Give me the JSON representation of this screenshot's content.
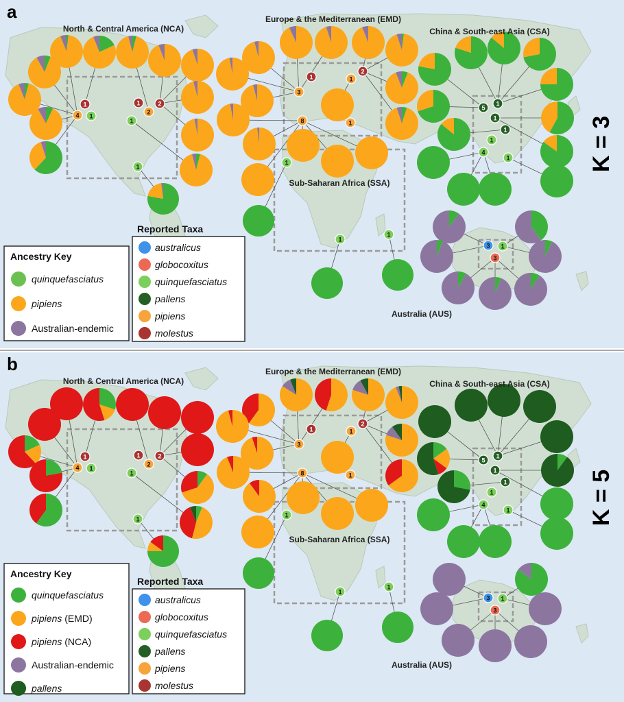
{
  "colors": {
    "ocean": "#dce8f3",
    "land": "#d1dfd2",
    "land_stroke": "#b8c9bb",
    "quinquefasciatus": "#3cb23c",
    "pipiens": "#fca61b",
    "pipiens_nca": "#e01818",
    "australian": "#8c76a0",
    "pallens": "#1f5c1f",
    "taxa_australicus": "#3f92ea",
    "taxa_globocoxitus": "#ec6a55",
    "taxa_quinquefasciatus": "#7ccf5c",
    "taxa_pallens": "#265f26",
    "taxa_pipiens": "#f7a43b",
    "taxa_molestus": "#a93532",
    "key_quinq_a": "#6cc052"
  },
  "panel_a": {
    "label": "a",
    "k_label": "K = 3",
    "regions": {
      "nca": "North & Central America (NCA)",
      "emd": "Europe & the Mediterranean (EMD)",
      "csa": "China & South-east Asia (CSA)",
      "ssa": "Sub-Saharan Africa (SSA)",
      "aus": "Australia (AUS)"
    },
    "ancestry_key": {
      "title": "Ancestry Key",
      "items": [
        {
          "label": "quinquefasciatus",
          "italic": true,
          "color": "#6cc052"
        },
        {
          "label": "pipiens",
          "italic": true,
          "color": "#fca61b"
        },
        {
          "label": "Australian-endemic",
          "italic": false,
          "color": "#8c76a0"
        }
      ]
    },
    "taxa_key": {
      "title": "Reported Taxa",
      "items": [
        {
          "label": "australicus",
          "color": "#3f92ea"
        },
        {
          "label": "globocoxitus",
          "color": "#ec6a55"
        },
        {
          "label": "quinquefasciatus",
          "color": "#7ccf5c"
        },
        {
          "label": "pallens",
          "color": "#265f26"
        },
        {
          "label": "pipiens",
          "color": "#f7a43b"
        },
        {
          "label": "molestus",
          "color": "#a93532"
        }
      ]
    }
  },
  "panel_b": {
    "label": "b",
    "k_label": "K = 5",
    "regions": {
      "nca": "North & Central America (NCA)",
      "emd": "Europe & the Mediterranean (EMD)",
      "csa": "China & South-east Asia (CSA)",
      "ssa": "Sub-Saharan Africa (SSA)",
      "aus": "Australia (AUS)"
    },
    "ancestry_key": {
      "title": "Ancestry Key",
      "items": [
        {
          "label": "quinquefasciatus",
          "italic": true,
          "suffix": "",
          "color": "#3cb23c"
        },
        {
          "label": "pipiens",
          "italic": true,
          "suffix": " (EMD)",
          "color": "#fca61b"
        },
        {
          "label": "pipiens",
          "italic": true,
          "suffix": " (NCA)",
          "color": "#e01818"
        },
        {
          "label": "Australian-endemic",
          "italic": false,
          "suffix": "",
          "color": "#8c76a0"
        },
        {
          "label": "pallens",
          "italic": true,
          "suffix": "",
          "color": "#1f5c1f"
        }
      ]
    },
    "taxa_key": {
      "title": "Reported Taxa",
      "items": [
        {
          "label": "australicus",
          "color": "#3f92ea"
        },
        {
          "label": "globocoxitus",
          "color": "#ec6a55"
        },
        {
          "label": "quinquefasciatus",
          "color": "#7ccf5c"
        },
        {
          "label": "pallens",
          "color": "#265f26"
        },
        {
          "label": "pipiens",
          "color": "#f7a43b"
        },
        {
          "label": "molestus",
          "color": "#a93532"
        }
      ]
    }
  },
  "sites": {
    "nca": [
      {
        "taxon": "pipiens",
        "count": "4"
      },
      {
        "taxon": "molestus",
        "count": "1"
      },
      {
        "taxon": "quinquefasciatus",
        "count": "1"
      },
      {
        "taxon": "molestus",
        "count": "1"
      },
      {
        "taxon": "molestus",
        "count": "2"
      },
      {
        "taxon": "pipiens",
        "count": "2"
      },
      {
        "taxon": "quinquefasciatus",
        "count": "1"
      },
      {
        "taxon": "quinquefasciatus",
        "count": "1"
      }
    ],
    "emd": [
      {
        "taxon": "molestus",
        "count": "1"
      },
      {
        "taxon": "pipiens",
        "count": "3"
      },
      {
        "taxon": "molestus",
        "count": "2"
      },
      {
        "taxon": "pipiens",
        "count": "1"
      },
      {
        "taxon": "pipiens",
        "count": "8"
      },
      {
        "taxon": "pipiens",
        "count": "1"
      }
    ],
    "csa": [
      {
        "taxon": "pallens",
        "count": "5"
      },
      {
        "taxon": "pallens",
        "count": "1"
      },
      {
        "taxon": "pallens",
        "count": "1"
      },
      {
        "taxon": "pallens",
        "count": "1"
      },
      {
        "taxon": "quinquefasciatus",
        "count": "1"
      },
      {
        "taxon": "quinquefasciatus",
        "count": "4"
      },
      {
        "taxon": "quinquefasciatus",
        "count": "1"
      }
    ],
    "ssa": [
      {
        "taxon": "quinquefasciatus",
        "count": "1"
      },
      {
        "taxon": "quinquefasciatus",
        "count": "1"
      },
      {
        "taxon": "quinquefasciatus",
        "count": "1"
      }
    ],
    "aus": [
      {
        "taxon": "australicus",
        "count": "3"
      },
      {
        "taxon": "quinquefasciatus",
        "count": "1"
      },
      {
        "taxon": "globocoxitus",
        "count": "3"
      }
    ]
  },
  "pies_a": {
    "nca": [
      {
        "pipiens": 0.92,
        "australian": 0.06,
        "quinquefasciatus": 0.02
      },
      {
        "quinquefasciatus": 0.18,
        "pipiens": 0.76,
        "australian": 0.06
      },
      {
        "pipiens": 0.92,
        "quinquefasciatus": 0.04,
        "australian": 0.04
      },
      {
        "pipiens": 0.94,
        "australian": 0.06
      },
      {
        "pipiens": 0.95,
        "australian": 0.05
      },
      {
        "pipiens": 0.86,
        "australian": 0.08,
        "quinquefasciatus": 0.06
      },
      {
        "pipiens": 0.9,
        "australian": 0.06,
        "quinquefasciatus": 0.04
      },
      {
        "pipiens": 0.96,
        "australian": 0.04
      },
      {
        "pipiens": 0.85,
        "australian": 0.08,
        "quinquefasciatus": 0.07
      },
      {
        "pipiens": 0.97,
        "australian": 0.03
      },
      {
        "quinquefasciatus": 0.62,
        "pipiens": 0.33,
        "australian": 0.05
      },
      {
        "pipiens": 0.92,
        "quinquefasciatus": 0.04,
        "australian": 0.04
      },
      {
        "quinquefasciatus": 0.78,
        "pipiens": 0.2,
        "australian": 0.02
      },
      {
        "quinquefasciatus": 1.0
      }
    ],
    "emd": [
      {
        "pipiens": 0.93,
        "australian": 0.07
      },
      {
        "pipiens": 0.95,
        "australian": 0.05
      },
      {
        "pipiens": 0.94,
        "australian": 0.06
      },
      {
        "pipiens": 0.93,
        "australian": 0.05,
        "quinquefasciatus": 0.02
      },
      {
        "pipiens": 0.96,
        "australian": 0.04
      },
      {
        "pipiens": 0.97,
        "australian": 0.03
      },
      {
        "pipiens": 0.96,
        "australian": 0.04
      },
      {
        "pipiens": 0.88,
        "australian": 0.06,
        "quinquefasciatus": 0.06
      },
      {
        "pipiens": 0.97,
        "australian": 0.03
      },
      {
        "pipiens": 1.0
      },
      {
        "pipiens": 0.9,
        "australian": 0.05,
        "quinquefasciatus": 0.05
      },
      {
        "pipiens": 1.0
      },
      {
        "pipiens": 0.98,
        "australian": 0.02
      },
      {
        "pipiens": 1.0
      },
      {
        "pipiens": 1.0
      },
      {
        "pipiens": 1.0
      },
      {
        "pipiens": 1.0
      },
      {
        "pipiens": 1.0
      },
      {
        "pipiens": 1.0
      }
    ],
    "csa": [
      {
        "quinquefasciatus": 0.78,
        "pipiens": 0.22
      },
      {
        "quinquefasciatus": 0.8,
        "pipiens": 0.2
      },
      {
        "quinquefasciatus": 0.86,
        "pipiens": 0.14
      },
      {
        "quinquefasciatus": 0.72,
        "pipiens": 0.28
      },
      {
        "quinquefasciatus": 0.75,
        "pipiens": 0.25
      },
      {
        "quinquefasciatus": 0.7,
        "pipiens": 0.3
      },
      {
        "quinquefasciatus": 0.58,
        "pipiens": 0.42
      },
      {
        "quinquefasciatus": 0.86,
        "pipiens": 0.14
      },
      {
        "quinquefasciatus": 0.85,
        "pipiens": 0.15
      },
      {
        "quinquefasciatus": 1.0
      },
      {
        "quinquefasciatus": 1.0
      },
      {
        "quinquefasciatus": 1.0
      },
      {
        "quinquefasciatus": 1.0
      }
    ],
    "ssa": [
      {
        "quinquefasciatus": 1.0
      },
      {
        "quinquefasciatus": 1.0
      },
      {
        "quinquefasciatus": 1.0
      }
    ],
    "aus": [
      {
        "quinquefasciatus": 0.1,
        "australian": 0.9
      },
      {
        "quinquefasciatus": 0.4,
        "australian": 0.6
      },
      {
        "quinquefasciatus": 0.06,
        "australian": 0.94
      },
      {
        "quinquefasciatus": 0.07,
        "australian": 0.93
      },
      {
        "quinquefasciatus": 0.08,
        "australian": 0.92
      },
      {
        "quinquefasciatus": 0.06,
        "australian": 0.94
      },
      {
        "quinquefasciatus": 0.09,
        "australian": 0.91
      }
    ]
  },
  "pies_b": {
    "nca": [
      {
        "pipiens_nca": 1.0
      },
      {
        "pipiens_nca": 0.55,
        "pipiens": 0.15,
        "quinquefasciatus": 0.3
      },
      {
        "pipiens_nca": 1.0
      },
      {
        "pipiens_nca": 1.0
      },
      {
        "pipiens_nca": 1.0
      },
      {
        "pipiens_nca": 1.0
      },
      {
        "pipiens_nca": 0.62,
        "quinquefasciatus": 0.18,
        "pipiens": 0.2
      },
      {
        "pipiens_nca": 1.0
      },
      {
        "pipiens_nca": 0.78,
        "quinquefasciatus": 0.22
      },
      {
        "pipiens": 0.6,
        "pipiens_nca": 0.3,
        "quinquefasciatus": 0.1
      },
      {
        "quinquefasciatus": 0.6,
        "pipiens_nca": 0.4
      },
      {
        "pipiens": 0.48,
        "pipiens_nca": 0.4,
        "quinquefasciatus": 0.06,
        "pallens": 0.06
      },
      {
        "quinquefasciatus": 0.75,
        "pipiens_nca": 0.15,
        "pipiens": 0.1
      },
      {
        "quinquefasciatus": 1.0
      }
    ],
    "emd": [
      {
        "pipiens": 0.84,
        "australian": 0.1,
        "pallens": 0.06
      },
      {
        "pipiens": 0.55,
        "pipiens_nca": 0.45
      },
      {
        "pipiens": 0.8,
        "australian": 0.12,
        "pallens": 0.08
      },
      {
        "pipiens": 0.94,
        "australian": 0.03,
        "pallens": 0.03
      },
      {
        "pipiens": 0.6,
        "pipiens_nca": 0.4
      },
      {
        "pipiens": 0.96,
        "pipiens_nca": 0.04
      },
      {
        "pipiens": 0.95,
        "pipiens_nca": 0.05
      },
      {
        "pipiens": 0.8,
        "australian": 0.1,
        "pallens": 0.1
      },
      {
        "pipiens": 0.94,
        "pipiens_nca": 0.06
      },
      {
        "pipiens": 1.0
      },
      {
        "pipiens": 0.65,
        "pipiens_nca": 0.35
      },
      {
        "pipiens": 1.0
      },
      {
        "pipiens": 0.9,
        "pipiens_nca": 0.1
      },
      {
        "pipiens": 1.0
      },
      {
        "pipiens": 1.0
      },
      {
        "pipiens": 1.0
      },
      {
        "pipiens": 1.0
      },
      {
        "pipiens": 1.0
      },
      {
        "pipiens": 1.0
      }
    ],
    "csa": [
      {
        "pallens": 1.0
      },
      {
        "pallens": 1.0
      },
      {
        "pallens": 1.0
      },
      {
        "pallens": 1.0
      },
      {
        "pallens": 1.0
      },
      {
        "pallens": 0.55,
        "pipiens_nca": 0.1,
        "quinquefasciatus": 0.15,
        "pipiens": 0.2
      },
      {
        "pallens": 0.9,
        "quinquefasciatus": 0.1
      },
      {
        "pallens": 0.72,
        "quinquefasciatus": 0.28
      },
      {
        "quinquefasciatus": 1.0
      },
      {
        "quinquefasciatus": 1.0
      },
      {
        "quinquefasciatus": 1.0
      },
      {
        "quinquefasciatus": 1.0
      },
      {
        "quinquefasciatus": 1.0
      }
    ],
    "ssa": [
      {
        "quinquefasciatus": 1.0
      },
      {
        "quinquefasciatus": 1.0
      },
      {
        "quinquefasciatus": 1.0
      }
    ],
    "aus": [
      {
        "australian": 1.0
      },
      {
        "quinquefasciatus": 0.85,
        "australian": 0.15
      },
      {
        "australian": 1.0
      },
      {
        "australian": 1.0
      },
      {
        "australian": 1.0
      },
      {
        "australian": 1.0
      },
      {
        "australian": 1.0
      }
    ]
  }
}
